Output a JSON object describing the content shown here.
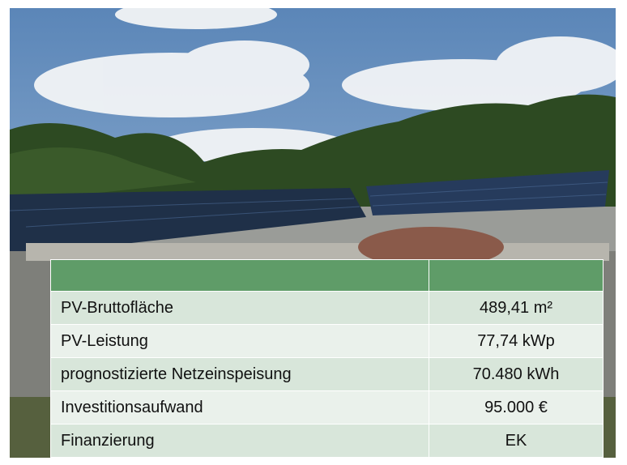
{
  "table": {
    "rows": [
      [
        "PV-Bruttofläche",
        "489,41 m²"
      ],
      [
        "PV-Leistung",
        "77,74 kWp"
      ],
      [
        "prognostizierte Netzeinspeisung",
        "70.480 kWh"
      ],
      [
        "Investitionsaufwand",
        "95.000 €"
      ],
      [
        "Finanzierung",
        "EK"
      ]
    ]
  }
}
